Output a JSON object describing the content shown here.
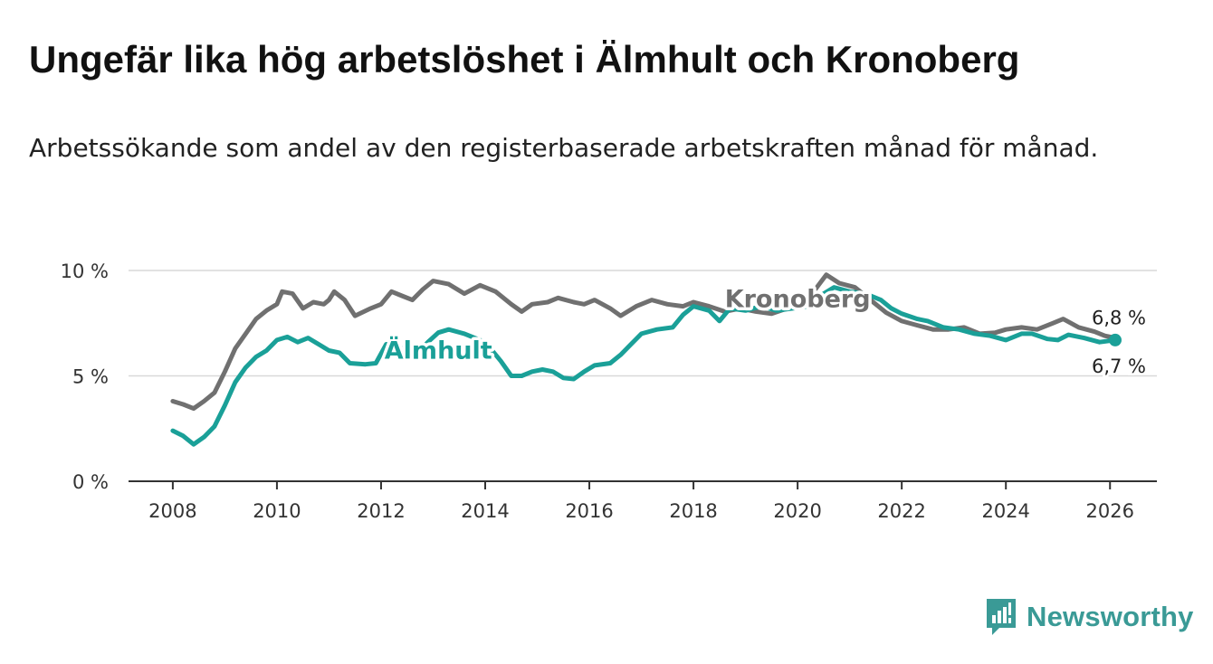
{
  "title": "Ungefär lika hög arbetslöshet i Älmhult och Kronoberg",
  "subtitle": "Arbetssökande som andel av den registerbaserade arbetskraften månad för månad.",
  "brand": {
    "name": "Newsworthy",
    "icon": "newsworthy-logo-icon",
    "color": "#3a9a96"
  },
  "chart_data": {
    "type": "line",
    "title": "Ungefär lika hög arbetslöshet i Älmhult och Kronoberg",
    "xlabel": "",
    "ylabel": "",
    "xlim": [
      2007.15,
      2026.9
    ],
    "ylim": [
      0,
      10
    ],
    "x_ticks": [
      2008,
      2010,
      2012,
      2014,
      2016,
      2018,
      2020,
      2022,
      2024,
      2026
    ],
    "x_tick_labels": [
      "2008",
      "2010",
      "2012",
      "2014",
      "2016",
      "2018",
      "2020",
      "2022",
      "2024",
      "2026"
    ],
    "y_ticks": [
      0,
      5,
      10
    ],
    "y_tick_labels": [
      "0 %",
      "5 %",
      "10 %"
    ],
    "grid": true,
    "series": [
      {
        "name": "Kronoberg",
        "color": "#707070",
        "end_label": "6,8 %",
        "points": [
          [
            2008.0,
            3.8
          ],
          [
            2008.2,
            3.65
          ],
          [
            2008.4,
            3.45
          ],
          [
            2008.6,
            3.8
          ],
          [
            2008.8,
            4.2
          ],
          [
            2009.0,
            5.2
          ],
          [
            2009.2,
            6.3
          ],
          [
            2009.4,
            7.0
          ],
          [
            2009.6,
            7.7
          ],
          [
            2009.8,
            8.1
          ],
          [
            2010.0,
            8.4
          ],
          [
            2010.1,
            9.0
          ],
          [
            2010.3,
            8.9
          ],
          [
            2010.5,
            8.2
          ],
          [
            2010.7,
            8.5
          ],
          [
            2010.9,
            8.4
          ],
          [
            2011.0,
            8.6
          ],
          [
            2011.1,
            9.0
          ],
          [
            2011.3,
            8.6
          ],
          [
            2011.5,
            7.85
          ],
          [
            2011.8,
            8.2
          ],
          [
            2012.0,
            8.4
          ],
          [
            2012.2,
            9.0
          ],
          [
            2012.4,
            8.8
          ],
          [
            2012.6,
            8.6
          ],
          [
            2012.8,
            9.1
          ],
          [
            2013.0,
            9.5
          ],
          [
            2013.3,
            9.35
          ],
          [
            2013.6,
            8.9
          ],
          [
            2013.9,
            9.3
          ],
          [
            2014.2,
            9.0
          ],
          [
            2014.5,
            8.4
          ],
          [
            2014.7,
            8.05
          ],
          [
            2014.9,
            8.4
          ],
          [
            2015.2,
            8.5
          ],
          [
            2015.4,
            8.7
          ],
          [
            2015.7,
            8.5
          ],
          [
            2015.9,
            8.4
          ],
          [
            2016.1,
            8.6
          ],
          [
            2016.4,
            8.2
          ],
          [
            2016.6,
            7.85
          ],
          [
            2016.9,
            8.3
          ],
          [
            2017.2,
            8.6
          ],
          [
            2017.5,
            8.4
          ],
          [
            2017.8,
            8.3
          ],
          [
            2018.0,
            8.5
          ],
          [
            2018.3,
            8.3
          ],
          [
            2018.6,
            8.05
          ],
          [
            2018.9,
            8.2
          ],
          [
            2019.2,
            8.05
          ],
          [
            2019.5,
            7.95
          ],
          [
            2019.8,
            8.2
          ],
          [
            2020.1,
            8.3
          ],
          [
            2020.4,
            9.3
          ],
          [
            2020.55,
            9.8
          ],
          [
            2020.8,
            9.4
          ],
          [
            2021.1,
            9.2
          ],
          [
            2021.4,
            8.6
          ],
          [
            2021.7,
            8.0
          ],
          [
            2022.0,
            7.6
          ],
          [
            2022.3,
            7.4
          ],
          [
            2022.6,
            7.2
          ],
          [
            2022.9,
            7.2
          ],
          [
            2023.2,
            7.3
          ],
          [
            2023.5,
            7.0
          ],
          [
            2023.8,
            7.05
          ],
          [
            2024.0,
            7.2
          ],
          [
            2024.3,
            7.3
          ],
          [
            2024.6,
            7.2
          ],
          [
            2024.9,
            7.5
          ],
          [
            2025.1,
            7.7
          ],
          [
            2025.4,
            7.3
          ],
          [
            2025.7,
            7.1
          ],
          [
            2025.9,
            6.9
          ],
          [
            2026.1,
            6.8
          ]
        ]
      },
      {
        "name": "Älmhult",
        "color": "#1aa098",
        "end_label": "6,7 %",
        "points": [
          [
            2008.0,
            2.4
          ],
          [
            2008.2,
            2.15
          ],
          [
            2008.4,
            1.75
          ],
          [
            2008.6,
            2.1
          ],
          [
            2008.8,
            2.6
          ],
          [
            2009.0,
            3.6
          ],
          [
            2009.2,
            4.7
          ],
          [
            2009.4,
            5.4
          ],
          [
            2009.6,
            5.9
          ],
          [
            2009.8,
            6.2
          ],
          [
            2010.0,
            6.7
          ],
          [
            2010.2,
            6.85
          ],
          [
            2010.4,
            6.6
          ],
          [
            2010.6,
            6.8
          ],
          [
            2010.8,
            6.5
          ],
          [
            2011.0,
            6.2
          ],
          [
            2011.2,
            6.1
          ],
          [
            2011.4,
            5.6
          ],
          [
            2011.7,
            5.55
          ],
          [
            2011.9,
            5.6
          ],
          [
            2012.1,
            6.5
          ],
          [
            2012.3,
            6.4
          ],
          [
            2012.5,
            6.2
          ],
          [
            2012.7,
            6.1
          ],
          [
            2012.9,
            6.6
          ],
          [
            2013.1,
            7.05
          ],
          [
            2013.3,
            7.2
          ],
          [
            2013.6,
            7.0
          ],
          [
            2013.9,
            6.7
          ],
          [
            2014.1,
            6.3
          ],
          [
            2014.3,
            5.7
          ],
          [
            2014.5,
            5.0
          ],
          [
            2014.7,
            5.0
          ],
          [
            2014.9,
            5.2
          ],
          [
            2015.1,
            5.3
          ],
          [
            2015.3,
            5.2
          ],
          [
            2015.5,
            4.9
          ],
          [
            2015.7,
            4.85
          ],
          [
            2015.9,
            5.2
          ],
          [
            2016.1,
            5.5
          ],
          [
            2016.4,
            5.6
          ],
          [
            2016.6,
            6.0
          ],
          [
            2016.8,
            6.5
          ],
          [
            2017.0,
            7.0
          ],
          [
            2017.3,
            7.2
          ],
          [
            2017.6,
            7.3
          ],
          [
            2017.8,
            7.9
          ],
          [
            2018.0,
            8.3
          ],
          [
            2018.3,
            8.1
          ],
          [
            2018.5,
            7.6
          ],
          [
            2018.7,
            8.2
          ],
          [
            2019.0,
            8.1
          ],
          [
            2019.3,
            8.3
          ],
          [
            2019.6,
            8.1
          ],
          [
            2019.9,
            8.2
          ],
          [
            2020.2,
            8.3
          ],
          [
            2020.5,
            8.9
          ],
          [
            2020.7,
            9.2
          ],
          [
            2021.0,
            9.0
          ],
          [
            2021.3,
            8.9
          ],
          [
            2021.6,
            8.6
          ],
          [
            2021.8,
            8.2
          ],
          [
            2022.0,
            7.95
          ],
          [
            2022.3,
            7.7
          ],
          [
            2022.5,
            7.6
          ],
          [
            2022.8,
            7.3
          ],
          [
            2023.1,
            7.2
          ],
          [
            2023.4,
            7.0
          ],
          [
            2023.7,
            6.9
          ],
          [
            2024.0,
            6.7
          ],
          [
            2024.3,
            7.0
          ],
          [
            2024.5,
            7.0
          ],
          [
            2024.8,
            6.75
          ],
          [
            2025.0,
            6.7
          ],
          [
            2025.2,
            6.95
          ],
          [
            2025.5,
            6.8
          ],
          [
            2025.8,
            6.6
          ],
          [
            2026.1,
            6.7
          ]
        ]
      }
    ],
    "annotations": [
      {
        "text": "Kronoberg",
        "series": "Kronoberg",
        "x": 2020.0,
        "y": 8.65
      },
      {
        "text": "Älmhult",
        "series": "Älmhult",
        "x": 2013.1,
        "y": 6.2
      }
    ]
  }
}
